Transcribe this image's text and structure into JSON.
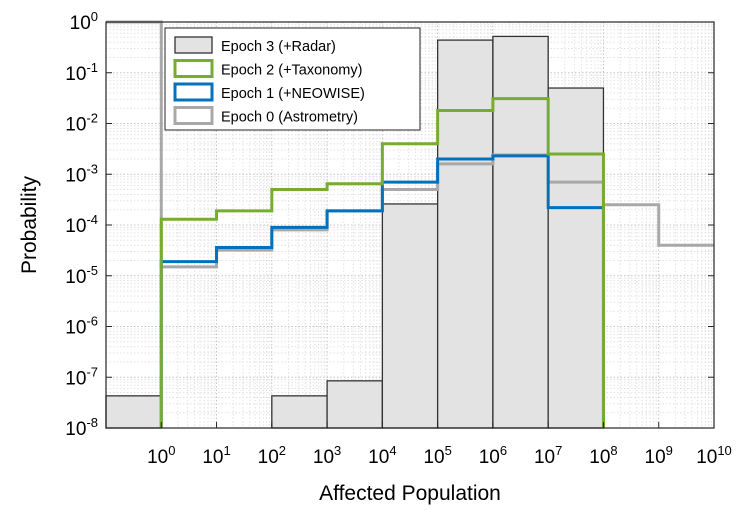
{
  "chart_data": {
    "type": "bar",
    "title": "",
    "xlabel": "Affected Population",
    "ylabel": "Probability",
    "x_scale": "log",
    "y_scale": "log",
    "grid": "on (major and minor)",
    "legend_placement": "top-left",
    "x_ticks": [
      {
        "label": "10",
        "exp": "0",
        "value": 1
      },
      {
        "label": "10",
        "exp": "1",
        "value": 10
      },
      {
        "label": "10",
        "exp": "2",
        "value": 100
      },
      {
        "label": "10",
        "exp": "3",
        "value": 1000
      },
      {
        "label": "10",
        "exp": "4",
        "value": 10000
      },
      {
        "label": "10",
        "exp": "5",
        "value": 100000
      },
      {
        "label": "10",
        "exp": "6",
        "value": 1000000
      },
      {
        "label": "10",
        "exp": "7",
        "value": 10000000
      },
      {
        "label": "10",
        "exp": "8",
        "value": 100000000
      },
      {
        "label": "10",
        "exp": "9",
        "value": 1000000000
      },
      {
        "label": "10",
        "exp": "10",
        "value": 10000000000
      }
    ],
    "y_ticks": [
      {
        "label": "10",
        "exp": "0",
        "value": 1
      },
      {
        "label": "10",
        "exp": "-1",
        "value": 0.1
      },
      {
        "label": "10",
        "exp": "-2",
        "value": 0.01
      },
      {
        "label": "10",
        "exp": "-3",
        "value": 0.001
      },
      {
        "label": "10",
        "exp": "-4",
        "value": 0.0001
      },
      {
        "label": "10",
        "exp": "-5",
        "value": 1e-05
      },
      {
        "label": "10",
        "exp": "-6",
        "value": 1e-06
      },
      {
        "label": "10",
        "exp": "-7",
        "value": 1e-07
      },
      {
        "label": "10",
        "exp": "-8",
        "value": 1e-08
      }
    ],
    "bins": [
      "0",
      "1-10",
      "10-100",
      "100-1000",
      "1000-10000",
      "10000-100000",
      "100000-1000000",
      "1000000-10000000",
      "10000000-100000000",
      "100000000-1000000000",
      "1000000000-10000000000"
    ],
    "series": [
      {
        "name": "Epoch 3 (+Radar)",
        "style": "bar",
        "color": "#333333",
        "fill": "#e3e3e3",
        "values": [
          4.3e-08,
          1e-08,
          1e-08,
          4.3e-08,
          8.5e-08,
          0.00026,
          0.44,
          0.52,
          0.05,
          null,
          null
        ]
      },
      {
        "name": "Epoch 2 (+Taxonomy)",
        "style": "stairs",
        "color": "#77ac30",
        "values": [
          null,
          0.00013,
          0.00019,
          0.0005,
          0.00065,
          0.004,
          0.018,
          0.031,
          0.0025,
          null,
          null
        ]
      },
      {
        "name": "Epoch 1 (+NEOWISE)",
        "style": "stairs",
        "color": "#0072bd",
        "values": [
          null,
          1.9e-05,
          3.6e-05,
          9e-05,
          0.00019,
          0.0007,
          0.002,
          0.0023,
          0.00022,
          null,
          null
        ]
      },
      {
        "name": "Epoch 0 (Astrometry)",
        "style": "stairs",
        "color": "#a8a8a8",
        "values": [
          1,
          1.5e-05,
          3.2e-05,
          8e-05,
          0.00019,
          0.0005,
          0.0016,
          0.0024,
          0.0007,
          0.00025,
          4e-05
        ]
      }
    ]
  }
}
